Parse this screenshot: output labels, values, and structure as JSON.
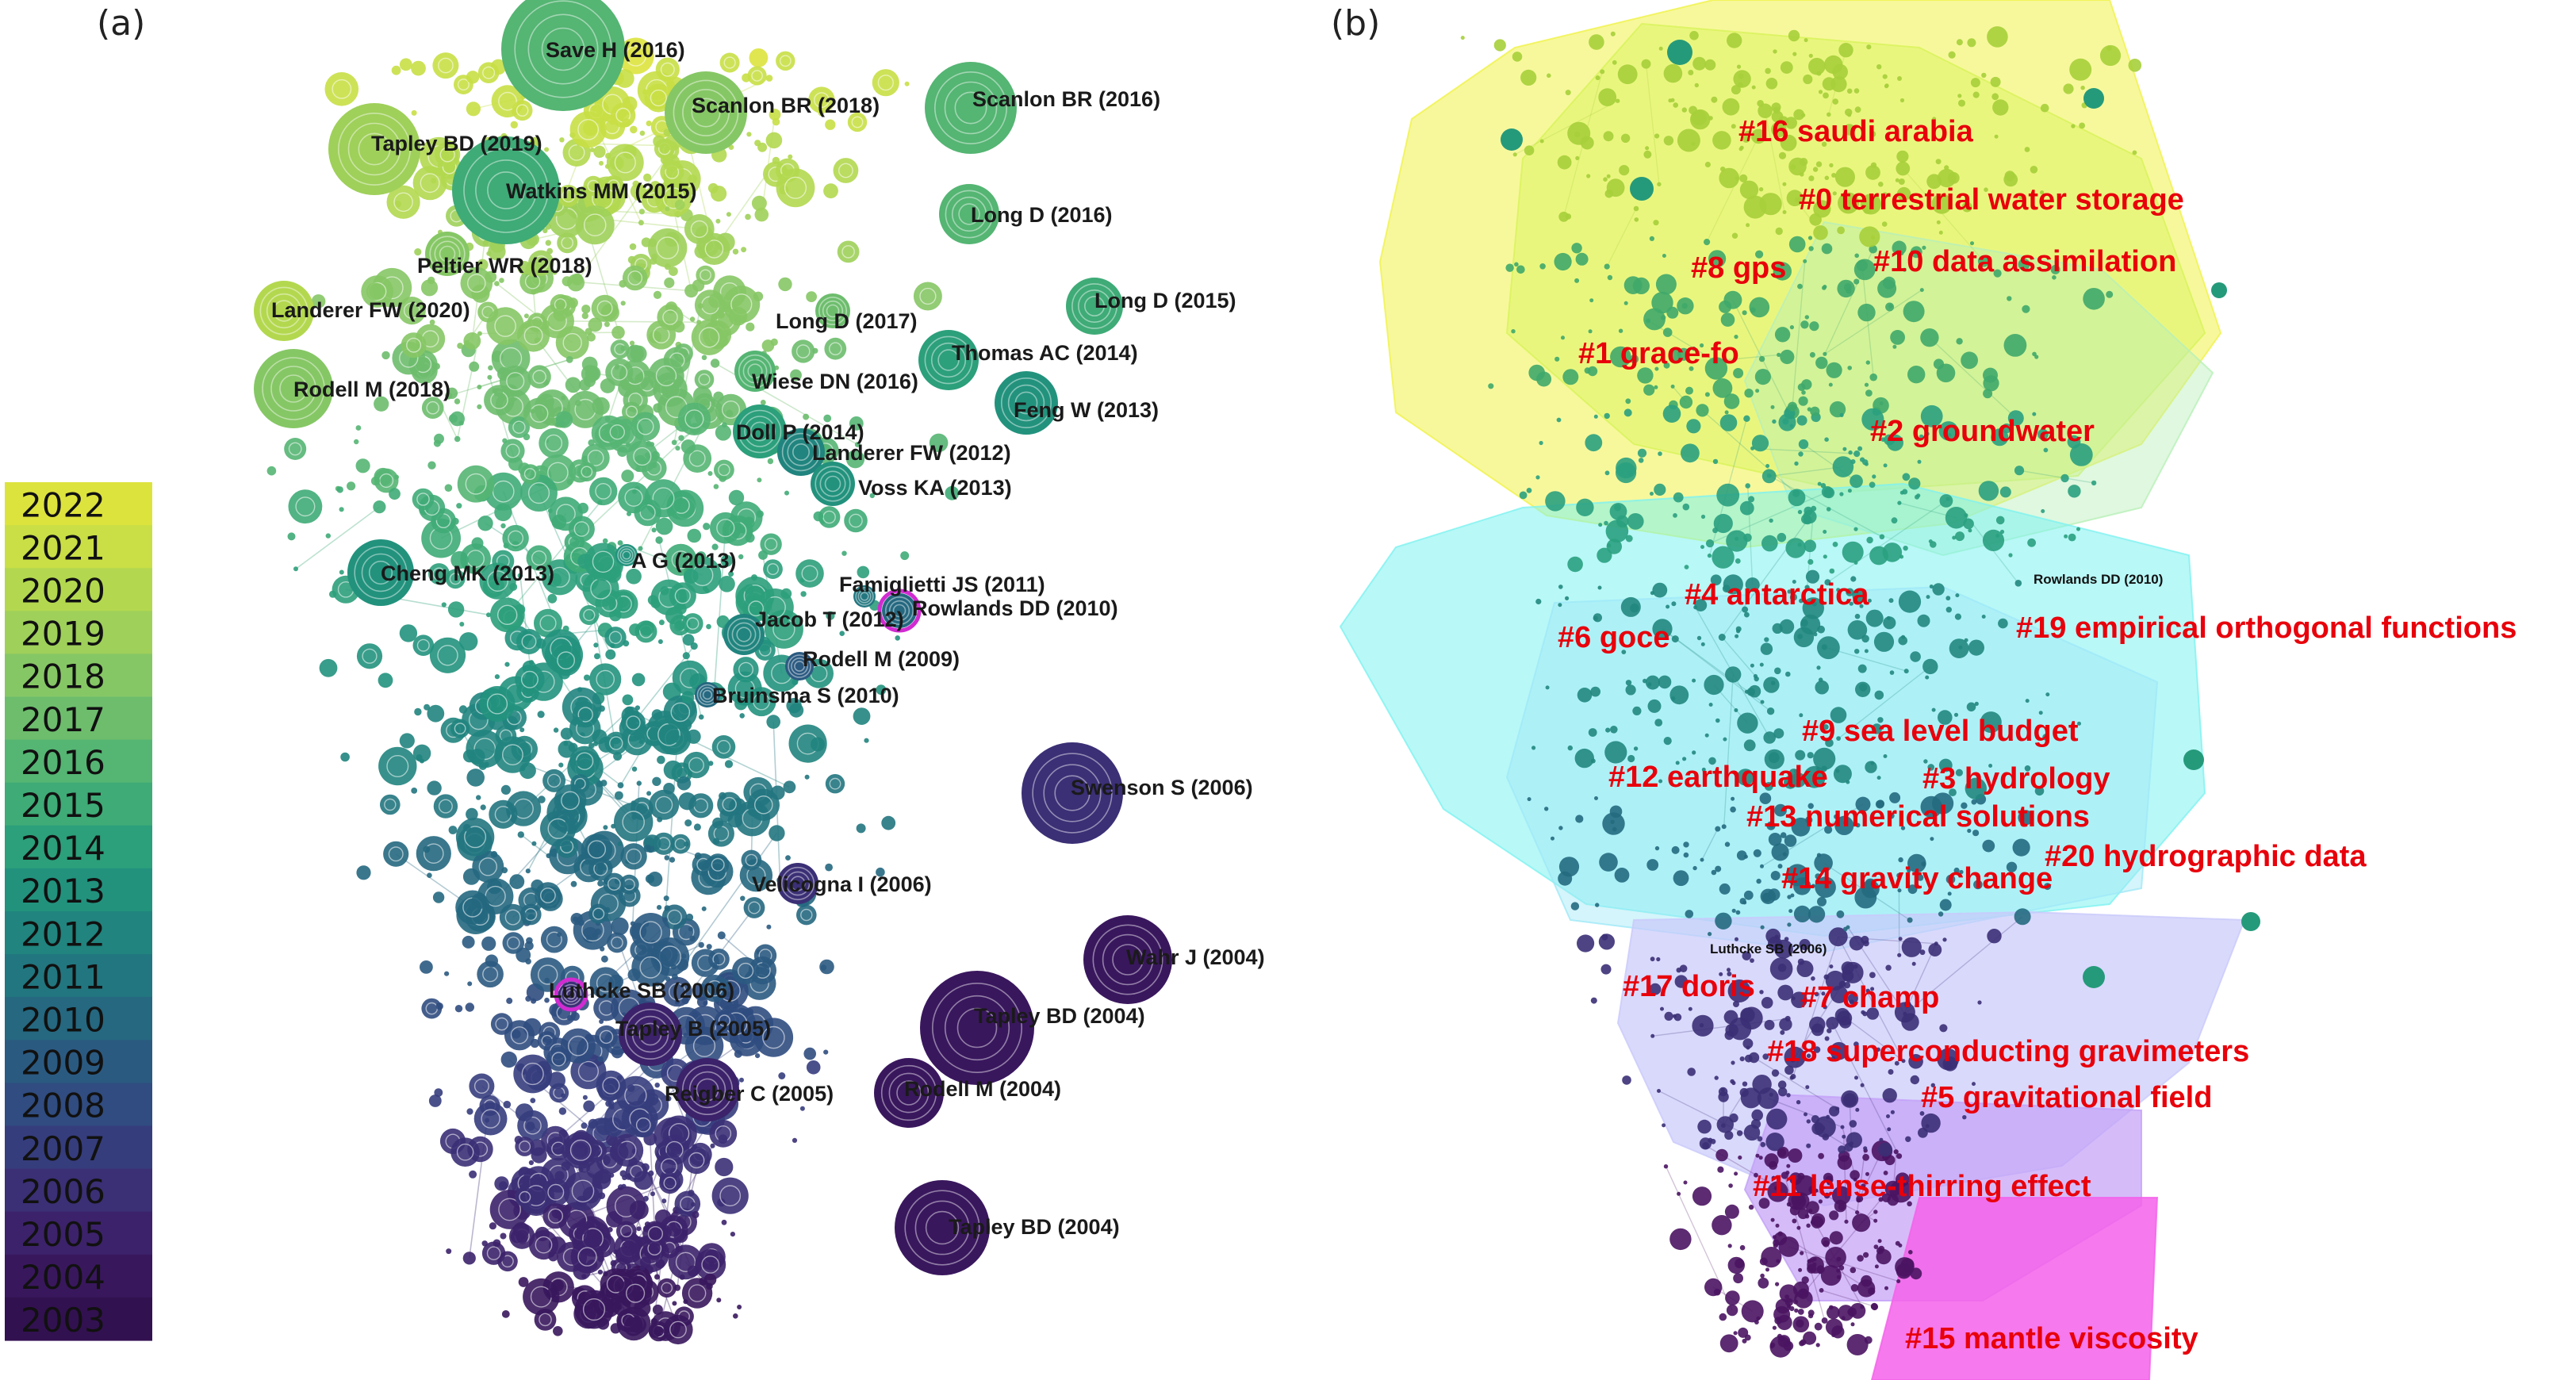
{
  "panels": {
    "a": {
      "label": "(a)"
    },
    "b": {
      "label": "(b)"
    }
  },
  "legend": {
    "years": [
      "2022",
      "2021",
      "2020",
      "2019",
      "2018",
      "2017",
      "2016",
      "2015",
      "2014",
      "2013",
      "2012",
      "2011",
      "2010",
      "2009",
      "2008",
      "2007",
      "2006",
      "2005",
      "2004",
      "2003"
    ],
    "colors": [
      "#dde33d",
      "#c9df45",
      "#b3d84f",
      "#9fd05a",
      "#86c765",
      "#6dbd6d",
      "#55b573",
      "#3fab77",
      "#2c9f7b",
      "#22927d",
      "#21847e",
      "#22767f",
      "#256880",
      "#2b5a81",
      "#304c80",
      "#363d7d",
      "#3b2f75",
      "#3c226a",
      "#39175d",
      "#321150"
    ]
  },
  "nodes_a": [
    {
      "label": "Save H (2016)",
      "year": 2016
    },
    {
      "label": "Scanlon BR (2018)",
      "year": 2018
    },
    {
      "label": "Scanlon BR (2016)",
      "year": 2016
    },
    {
      "label": "Tapley BD (2019)",
      "year": 2019
    },
    {
      "label": "Watkins MM (2015)",
      "year": 2015
    },
    {
      "label": "Long D (2016)",
      "year": 2016
    },
    {
      "label": "Peltier WR (2018)",
      "year": 2018
    },
    {
      "label": "Landerer FW (2020)",
      "year": 2020
    },
    {
      "label": "Long D (2017)",
      "year": 2017
    },
    {
      "label": "Long D (2015)",
      "year": 2015
    },
    {
      "label": "Thomas AC (2014)",
      "year": 2014
    },
    {
      "label": "Rodell M (2018)",
      "year": 2018
    },
    {
      "label": "Wiese DN (2016)",
      "year": 2016
    },
    {
      "label": "Feng W (2013)",
      "year": 2013
    },
    {
      "label": "Doll P (2014)",
      "year": 2014
    },
    {
      "label": "Landerer FW (2012)",
      "year": 2012
    },
    {
      "label": "Voss KA (2013)",
      "year": 2013
    },
    {
      "label": "Cheng MK (2013)",
      "year": 2013
    },
    {
      "label": "A G (2013)",
      "year": 2013
    },
    {
      "label": "Famiglietti JS (2011)",
      "year": 2011
    },
    {
      "label": "Rowlands DD (2010)",
      "year": 2010
    },
    {
      "label": "Jacob T (2012)",
      "year": 2012
    },
    {
      "label": "Rodell M (2009)",
      "year": 2009
    },
    {
      "label": "Bruinsma S (2010)",
      "year": 2010
    },
    {
      "label": "Swenson S (2006)",
      "year": 2006
    },
    {
      "label": "Velicogna I (2006)",
      "year": 2006
    },
    {
      "label": "Wahr J (2004)",
      "year": 2004
    },
    {
      "label": "Luthcke SB (2006)",
      "year": 2006
    },
    {
      "label": "Tapley BD (2004)",
      "year": 2004
    },
    {
      "label": "Tapley B (2005)",
      "year": 2005
    },
    {
      "label": "Reigber C (2005)",
      "year": 2005
    },
    {
      "label": "Rodell M (2004)",
      "year": 2004
    },
    {
      "label": "Tapley BD (2004)",
      "year": 2004
    }
  ],
  "clusters_b": [
    "#16 saudi arabia",
    "#0 terrestrial water storage",
    "#8 gps",
    "#10 data assimilation",
    "#1 grace-fo",
    "#2 groundwater",
    "#4 antarctica",
    "#6 goce",
    "#19 empirical orthogonal functions",
    "#9 sea level budget",
    "#12 earthquake",
    "#3 hydrology",
    "#13 numerical solutions",
    "#20 hydrographic data",
    "#14 gravity change",
    "#17 doris",
    "#7 champ",
    "#18 superconducting gravimeters",
    "#5 gravitational field",
    "#11 lense-thirring effect",
    "#15 mantle viscosity"
  ],
  "small_labels_b": [
    "Rowlands DD (2010)",
    "Luthcke SB (2006)"
  ]
}
